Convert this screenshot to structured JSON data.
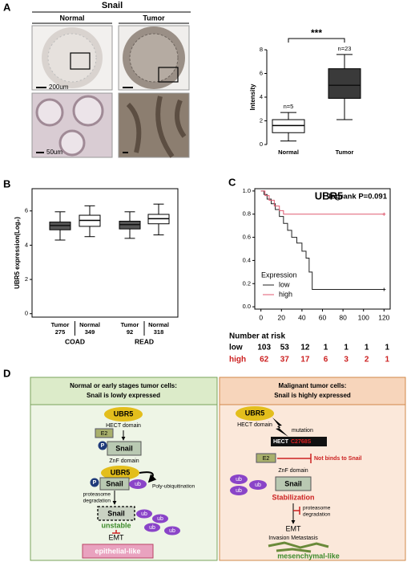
{
  "panel_letters": [
    "A",
    "B",
    "C",
    "D"
  ],
  "panel_a": {
    "title": "Snail",
    "columns": [
      "Normal",
      "Tumor"
    ],
    "scale_bars": [
      "200um",
      "50um"
    ]
  },
  "chart_data": [
    {
      "type": "box",
      "ylabel": "Intensity",
      "significance": "***",
      "categories": [
        "Normal",
        "Tumor"
      ],
      "annotations": [
        "n=5",
        "n=23"
      ],
      "boxes": [
        {
          "whislo": 0.3,
          "q1": 1.0,
          "med": 1.6,
          "q3": 2.1,
          "whishi": 2.7,
          "color": "#ffffff"
        },
        {
          "whislo": 2.1,
          "q1": 3.9,
          "med": 5.0,
          "q3": 6.4,
          "whishi": 7.6,
          "color": "#3a3a3a"
        }
      ],
      "ylim": [
        0,
        8
      ],
      "yticks": [
        0,
        2,
        4,
        6,
        8
      ]
    },
    {
      "type": "box",
      "ylabel": "UBR5 expression(Log₂)",
      "categories": [
        "Tumor",
        "Normal",
        "Tumor",
        "Normal"
      ],
      "counts": [
        275,
        349,
        92,
        318
      ],
      "groups": [
        "COAD",
        "READ"
      ],
      "boxes": [
        {
          "whislo": 4.3,
          "q1": 4.9,
          "med": 5.15,
          "q3": 5.35,
          "whishi": 5.95,
          "color": "#555555"
        },
        {
          "whislo": 4.5,
          "q1": 5.1,
          "med": 5.45,
          "q3": 5.75,
          "whishi": 6.3,
          "color": "#ffffff"
        },
        {
          "whislo": 4.4,
          "q1": 4.95,
          "med": 5.2,
          "q3": 5.4,
          "whishi": 5.95,
          "color": "#555555"
        },
        {
          "whislo": 4.6,
          "q1": 5.25,
          "med": 5.55,
          "q3": 5.8,
          "whishi": 6.4,
          "color": "#ffffff"
        }
      ],
      "ylim": [
        -0.2,
        7.3
      ],
      "yticks": [
        0,
        2,
        4,
        6
      ]
    },
    {
      "type": "km",
      "title": "UBR5",
      "annotation": "logrank P=0.091",
      "legend_title": "Expression",
      "series": [
        {
          "name": "low",
          "color": "#222222",
          "x": [
            0,
            3,
            3,
            6,
            6,
            10,
            10,
            14,
            14,
            18,
            18,
            22,
            22,
            26,
            26,
            30,
            30,
            35,
            35,
            40,
            40,
            44,
            44,
            47,
            47,
            50,
            50,
            120
          ],
          "values": [
            1,
            1,
            0.97,
            0.97,
            0.93,
            0.93,
            0.89,
            0.89,
            0.84,
            0.84,
            0.78,
            0.78,
            0.72,
            0.72,
            0.66,
            0.66,
            0.6,
            0.6,
            0.55,
            0.55,
            0.48,
            0.48,
            0.42,
            0.42,
            0.3,
            0.3,
            0.15,
            0.15
          ]
        },
        {
          "name": "high",
          "color": "#e05a70",
          "x": [
            0,
            4,
            4,
            8,
            8,
            13,
            13,
            18,
            18,
            22,
            22,
            120
          ],
          "values": [
            1,
            1,
            0.96,
            0.96,
            0.92,
            0.92,
            0.87,
            0.87,
            0.83,
            0.83,
            0.8,
            0.8
          ]
        }
      ],
      "xlim": [
        -6,
        126
      ],
      "xticks": [
        0,
        20,
        40,
        60,
        80,
        100,
        120
      ],
      "ylim": [
        -0.02,
        1.02
      ],
      "yticks": [
        {
          "value": 0,
          "label": "0.0"
        },
        0.2,
        0.4,
        0.6,
        0.8,
        {
          "value": 1,
          "label": "1.0"
        }
      ],
      "risk_table": {
        "title": "Number at risk",
        "rows": [
          {
            "label": "low",
            "color": "#000000",
            "values": [
              103,
              53,
              12,
              1,
              1,
              1,
              1
            ]
          },
          {
            "label": "high",
            "color": "#cc1f1f",
            "values": [
              62,
              37,
              17,
              6,
              3,
              2,
              1
            ]
          }
        ]
      }
    }
  ],
  "diagram": {
    "left": {
      "header": [
        "Normal or early stages tumor cells:",
        "Snail is lowly expressed"
      ],
      "ubr5": [
        "UBR5",
        "UBR5"
      ],
      "hect": "HECT domain",
      "e2": "E2",
      "p": [
        "P",
        "P"
      ],
      "snail": [
        "Snail",
        "Snail",
        "Snail"
      ],
      "znf": "ZnF domain",
      "ub": [
        "ub",
        "ub",
        "ub",
        "ub",
        "ub"
      ],
      "poly": "Poly-ubiquitination",
      "proteasome": [
        "proteasome",
        "degradation"
      ],
      "unstable": "unstable",
      "emt": "EMT",
      "cell": "epithelial-like"
    },
    "right": {
      "header": [
        "Malignant tumor cells:",
        "Snail is highly expressed"
      ],
      "ubr5": "UBR5",
      "hect": "HECT domain",
      "mutation": "mutation",
      "hect_mut": [
        "HECT",
        "C2768S"
      ],
      "e2": "E2",
      "notbind": "Not binds to Snail",
      "znf": "ZnF domain",
      "ub": [
        "ub",
        "ub",
        "ub"
      ],
      "snail": "Snail",
      "stab": "Stabilization",
      "proteasome": [
        "proteasome",
        "degradation"
      ],
      "emt": "EMT",
      "inv": "Invasion Metastasis",
      "cell": "mesenchymal-like"
    }
  }
}
